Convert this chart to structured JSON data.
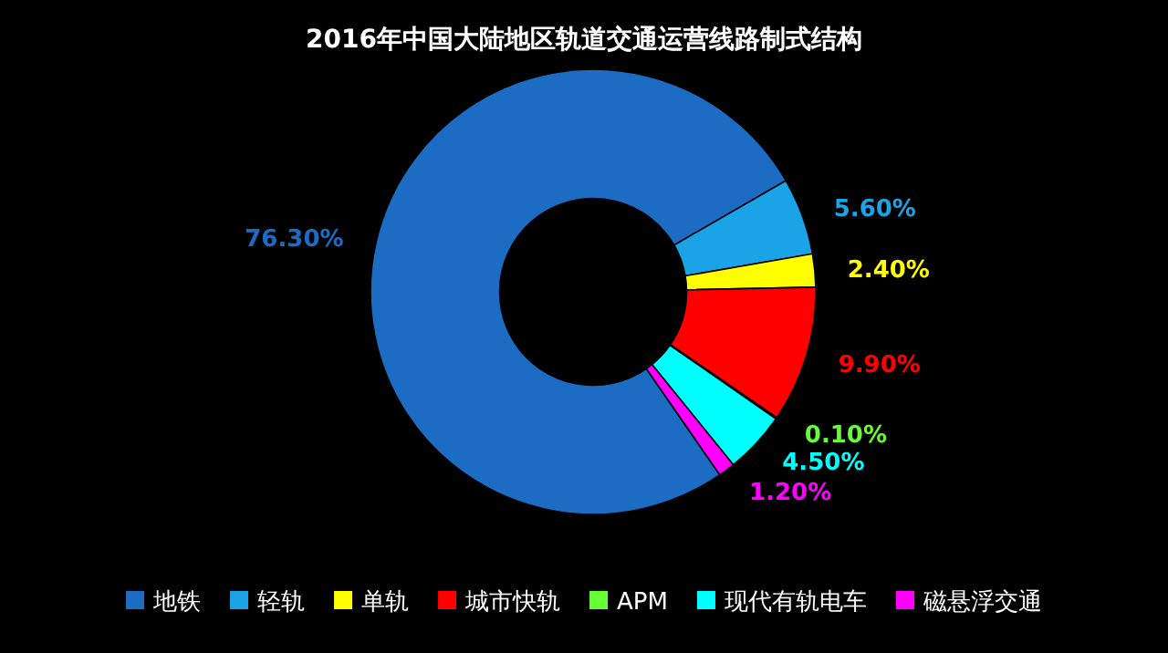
{
  "chart_data": {
    "type": "donut",
    "title": "2016年中国大陆地区轨道交通运营线路制式结构",
    "categories": [
      "地铁",
      "轻轨",
      "单轨",
      "城市快轨",
      "APM",
      "现代有轨电车",
      "磁悬浮交通"
    ],
    "values": [
      76.3,
      5.6,
      2.4,
      9.9,
      0.1,
      4.5,
      1.2
    ],
    "colors": [
      "#1c6cc4",
      "#1aa3e6",
      "#ffff00",
      "#ff0000",
      "#66ff33",
      "#00ffff",
      "#ff00ff"
    ],
    "value_labels": [
      "76.30%",
      "5.60%",
      "2.40%",
      "9.90%",
      "0.10%",
      "4.50%",
      "1.20%"
    ],
    "legend": "bottom"
  }
}
